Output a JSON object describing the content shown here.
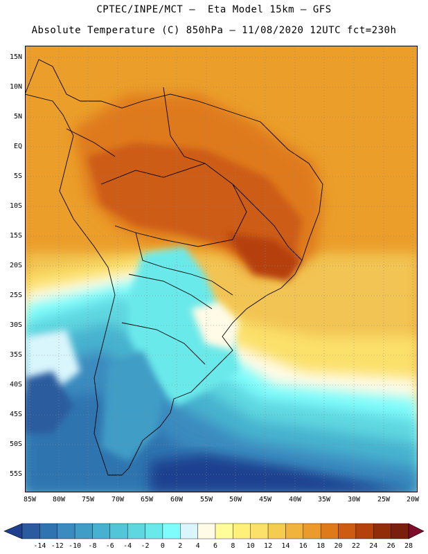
{
  "header": {
    "line1": "CPTEC/INPE/MCT –  Eta Model 15km – GFS",
    "line2": "Absolute Temperature (C) 850hPa – 11/08/2020 12UTC fct=230h"
  },
  "axes": {
    "lat_labels": [
      "15N",
      "10N",
      "5N",
      "EQ",
      "5S",
      "10S",
      "15S",
      "20S",
      "25S",
      "30S",
      "35S",
      "40S",
      "45S",
      "50S",
      "55S"
    ],
    "lon_labels": [
      "85W",
      "80W",
      "75W",
      "70W",
      "65W",
      "60W",
      "55W",
      "50W",
      "45W",
      "40W",
      "35W",
      "30W",
      "25W",
      "20W"
    ]
  },
  "colorbar": {
    "labels": [
      "-14",
      "-12",
      "-10",
      "-8",
      "-6",
      "-4",
      "-2",
      "0",
      "2",
      "4",
      "6",
      "8",
      "10",
      "12",
      "14",
      "16",
      "18",
      "20",
      "22",
      "24",
      "26",
      "28"
    ],
    "colors": [
      "#1f3f8f",
      "#2a5b9e",
      "#2f74b0",
      "#3a8bbf",
      "#3f9dc6",
      "#47b2cf",
      "#52c6d8",
      "#5fd7e0",
      "#6ae9ea",
      "#7ffcfc",
      "#d9f6fc",
      "#fffbe6",
      "#fffc9a",
      "#fff07a",
      "#fbe06a",
      "#f6cc4f",
      "#f0b33b",
      "#eb9a2c",
      "#df7a1a",
      "#cd5c12",
      "#b5410d",
      "#922d0a",
      "#7a1f0b",
      "#7e0c2a"
    ]
  }
}
